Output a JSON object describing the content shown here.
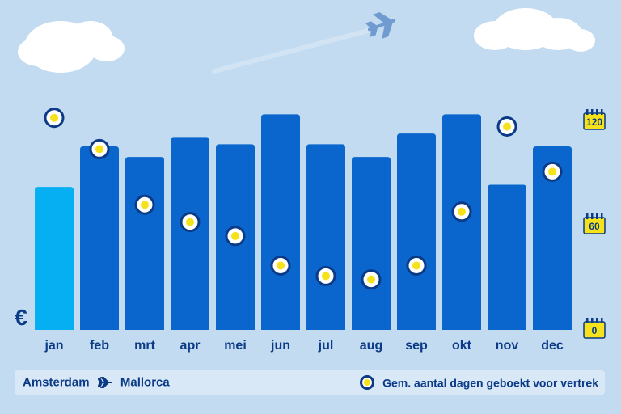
{
  "chart_data": {
    "type": "bar",
    "currency_symbol": "€",
    "categories": [
      "jan",
      "feb",
      "mrt",
      "apr",
      "mei",
      "jun",
      "jul",
      "aug",
      "sep",
      "okt",
      "nov",
      "dec"
    ],
    "price_level": [
      0.67,
      0.86,
      0.81,
      0.9,
      0.87,
      1.01,
      0.87,
      0.81,
      0.92,
      1.01,
      0.68,
      0.86
    ],
    "highlight_category": "jan",
    "days_booked_before_departure": [
      122,
      104,
      72,
      62,
      54,
      37,
      31,
      29,
      37,
      68,
      117,
      91
    ],
    "right_axis_ticks": [
      "120",
      "60",
      "0"
    ],
    "right_axis_range": [
      0,
      120
    ],
    "colors": {
      "bar": "#0a66cc",
      "bar_highlight": "#06aef2",
      "dot_fill": "#f5e21a",
      "dot_ring": "#0b3a86"
    }
  },
  "footer": {
    "origin": "Amsterdam",
    "destination": "Mallorca",
    "legend_label": "Gem. aantal dagen geboekt voor vertrek"
  }
}
